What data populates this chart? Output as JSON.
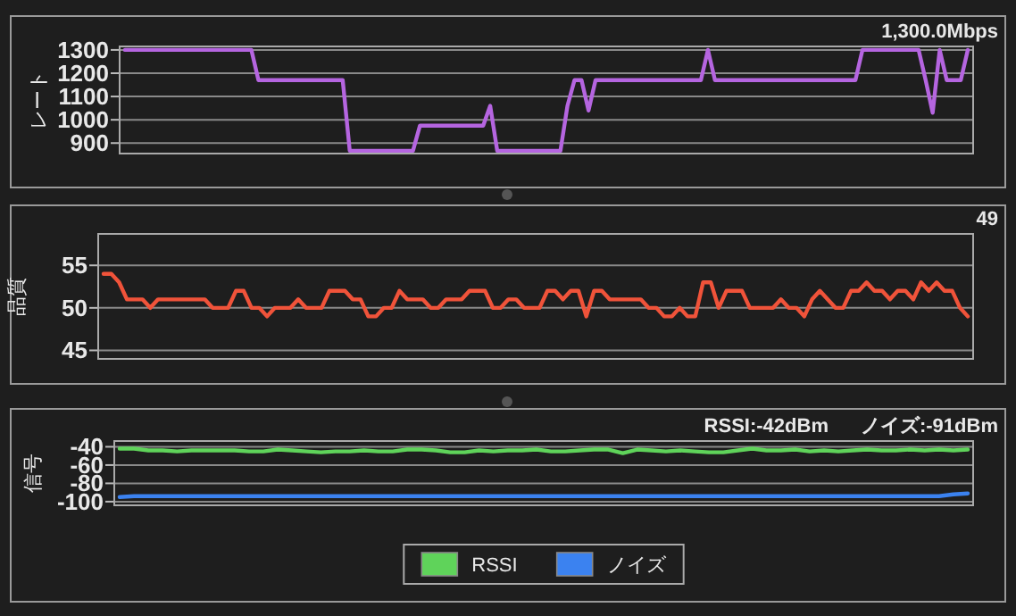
{
  "chart_data": [
    {
      "type": "line",
      "ylabel": "レート",
      "annotations": [
        "1,300.0Mbps"
      ],
      "ylim": [
        855,
        1315
      ],
      "yticks": [
        900,
        1000,
        1100,
        1200,
        1300
      ],
      "grid": "y",
      "tick_labels": "y",
      "categories": [
        null,
        null,
        null,
        null,
        null,
        null,
        null,
        null,
        null,
        null,
        null,
        null,
        null,
        null,
        null,
        null,
        null,
        null,
        null,
        null,
        null,
        null,
        null,
        null,
        null,
        null,
        null,
        null,
        null,
        null,
        null,
        null,
        null,
        null,
        null,
        null,
        null,
        null,
        null,
        null,
        null,
        null,
        null,
        null,
        null,
        null,
        null,
        null,
        null,
        null,
        null,
        null,
        null,
        null,
        null,
        null,
        null,
        null,
        null,
        null,
        null,
        null,
        null,
        null,
        null,
        null,
        null,
        null,
        null,
        null,
        null,
        null,
        null,
        null,
        null,
        null,
        null,
        null,
        null,
        null,
        null,
        null,
        null,
        null,
        null,
        null,
        null,
        null,
        null,
        null,
        null,
        null,
        null,
        null,
        null,
        null,
        null,
        null,
        null,
        null,
        null,
        null,
        null,
        null,
        null,
        null,
        null,
        null,
        null,
        null,
        null,
        null,
        null,
        null,
        null,
        null,
        null,
        null,
        null,
        null,
        null
      ],
      "series": [
        {
          "color": "#b565e0",
          "values": [
            1300,
            1300,
            1300,
            1300,
            1300,
            1300,
            1300,
            1300,
            1300,
            1300,
            1300,
            1300,
            1300,
            1300,
            1300,
            1300,
            1300,
            1300,
            1300,
            1170,
            1170,
            1170,
            1170,
            1170,
            1170,
            1170,
            1170,
            1170,
            1170,
            1170,
            1170,
            1170,
            867,
            867,
            867,
            867,
            867,
            867,
            867,
            867,
            867,
            867,
            975,
            975,
            975,
            975,
            975,
            975,
            975,
            975,
            975,
            975,
            1060,
            867,
            867,
            867,
            867,
            867,
            867,
            867,
            867,
            867,
            867,
            1060,
            1170,
            1170,
            1040,
            1170,
            1170,
            1170,
            1170,
            1170,
            1170,
            1170,
            1170,
            1170,
            1170,
            1170,
            1170,
            1170,
            1170,
            1170,
            1170,
            1300,
            1170,
            1170,
            1170,
            1170,
            1170,
            1170,
            1170,
            1170,
            1170,
            1170,
            1170,
            1170,
            1170,
            1170,
            1170,
            1170,
            1170,
            1170,
            1170,
            1170,
            1170,
            1300,
            1300,
            1300,
            1300,
            1300,
            1300,
            1300,
            1300,
            1300,
            1170,
            1030,
            1300,
            1170,
            1170,
            1170,
            1300
          ]
        }
      ]
    },
    {
      "type": "line",
      "ylabel": "品質",
      "annotations": [
        "49"
      ],
      "ylim": [
        44,
        58.7
      ],
      "yticks": [
        45,
        50,
        55
      ],
      "grid": "y",
      "tick_labels": "y",
      "categories": [
        null,
        null,
        null,
        null,
        null,
        null,
        null,
        null,
        null,
        null,
        null,
        null,
        null,
        null,
        null,
        null,
        null,
        null,
        null,
        null,
        null,
        null,
        null,
        null,
        null,
        null,
        null,
        null,
        null,
        null,
        null,
        null,
        null,
        null,
        null,
        null,
        null,
        null,
        null,
        null,
        null,
        null,
        null,
        null,
        null,
        null,
        null,
        null,
        null,
        null,
        null,
        null,
        null,
        null,
        null,
        null,
        null,
        null,
        null,
        null,
        null,
        null,
        null,
        null,
        null,
        null,
        null,
        null,
        null,
        null,
        null,
        null,
        null,
        null,
        null,
        null,
        null,
        null,
        null,
        null,
        null,
        null,
        null,
        null,
        null,
        null,
        null,
        null,
        null,
        null,
        null,
        null,
        null,
        null,
        null,
        null,
        null,
        null,
        null,
        null,
        null,
        null,
        null,
        null,
        null,
        null,
        null,
        null,
        null,
        null,
        null,
        null
      ],
      "series": [
        {
          "color": "#f0533a",
          "values": [
            54,
            54,
            53,
            51,
            51,
            51,
            50,
            51,
            51,
            51,
            51,
            51,
            51,
            51,
            50,
            50,
            50,
            52,
            52,
            50,
            50,
            49,
            50,
            50,
            50,
            51,
            50,
            50,
            50,
            52,
            52,
            52,
            51,
            51,
            49,
            49,
            50,
            50,
            52,
            51,
            51,
            51,
            50,
            50,
            51,
            51,
            51,
            52,
            52,
            52,
            50,
            50,
            51,
            51,
            50,
            50,
            50,
            52,
            52,
            51,
            52,
            52,
            49,
            52,
            52,
            51,
            51,
            51,
            51,
            51,
            50,
            50,
            49,
            49,
            50,
            49,
            49,
            53,
            53,
            50,
            52,
            52,
            52,
            50,
            50,
            50,
            50,
            51,
            50,
            50,
            49,
            51,
            52,
            51,
            50,
            50,
            52,
            52,
            53,
            52,
            52,
            51,
            52,
            52,
            51,
            53,
            52,
            53,
            52,
            52,
            50,
            49
          ]
        }
      ]
    },
    {
      "type": "line",
      "ylabel": "信号",
      "annotations": [
        "RSSI:-42dBm",
        "ノイズ:-91dBm"
      ],
      "ylim": [
        -104,
        -33.7
      ],
      "yticks": [
        -40,
        -60,
        -80,
        -100
      ],
      "grid": "y",
      "tick_labels": "y",
      "legend": "bottom",
      "categories": [
        null,
        null,
        null,
        null,
        null,
        null,
        null,
        null,
        null,
        null,
        null,
        null,
        null,
        null,
        null,
        null,
        null,
        null,
        null,
        null,
        null,
        null,
        null,
        null,
        null,
        null,
        null,
        null,
        null,
        null,
        null,
        null,
        null,
        null,
        null,
        null,
        null,
        null,
        null,
        null,
        null,
        null,
        null,
        null,
        null,
        null,
        null,
        null,
        null,
        null,
        null,
        null,
        null,
        null,
        null,
        null,
        null,
        null,
        null,
        null
      ],
      "series": [
        {
          "name": "RSSI",
          "color": "#5fd35a",
          "values": [
            -42,
            -42,
            -44,
            -44,
            -45,
            -44,
            -44,
            -44,
            -44,
            -45,
            -45,
            -43,
            -44,
            -45,
            -46,
            -45,
            -45,
            -44,
            -45,
            -45,
            -43,
            -43,
            -44,
            -46,
            -46,
            -44,
            -45,
            -44,
            -44,
            -43,
            -45,
            -45,
            -44,
            -43,
            -43,
            -47,
            -43,
            -44,
            -45,
            -44,
            -45,
            -46,
            -46,
            -44,
            -42,
            -44,
            -44,
            -43,
            -45,
            -44,
            -45,
            -44,
            -43,
            -44,
            -44,
            -43,
            -44,
            -43,
            -44,
            -43
          ]
        },
        {
          "name": "ノイズ",
          "color": "#3b82f0",
          "values": [
            -95,
            -94,
            -94,
            -94,
            -94,
            -94,
            -94,
            -94,
            -94,
            -94,
            -94,
            -94,
            -94,
            -94,
            -94,
            -94,
            -94,
            -94,
            -94,
            -94,
            -94,
            -94,
            -94,
            -94,
            -94,
            -94,
            -94,
            -94,
            -94,
            -94,
            -94,
            -94,
            -94,
            -94,
            -94,
            -94,
            -94,
            -94,
            -94,
            -94,
            -94,
            -94,
            -94,
            -94,
            -94,
            -94,
            -94,
            -94,
            -94,
            -94,
            -94,
            -94,
            -94,
            -94,
            -94,
            -94,
            -94,
            -94,
            -92,
            -91
          ]
        }
      ]
    }
  ]
}
